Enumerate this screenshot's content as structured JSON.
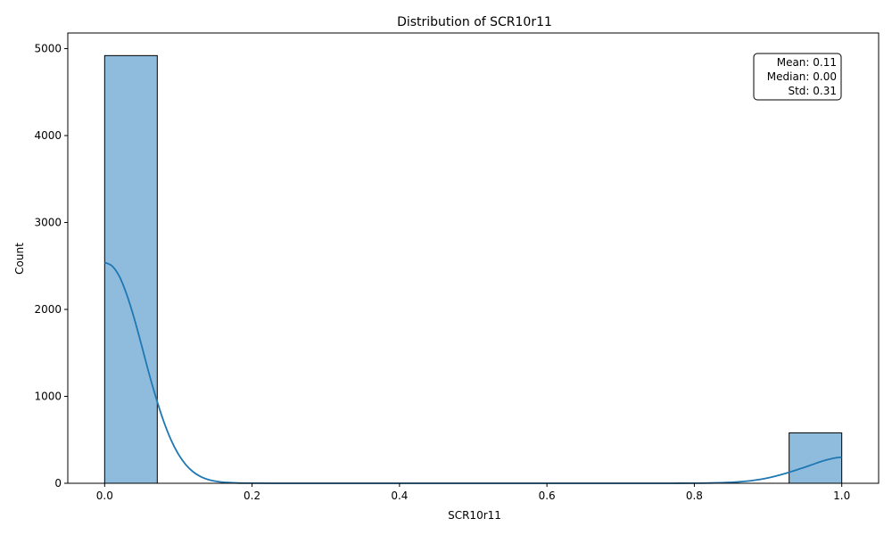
{
  "chart_data": {
    "type": "bar",
    "title": "Distribution of SCR10r11",
    "xlabel": "SCR10r11",
    "ylabel": "Count",
    "xlim": [
      -0.05,
      1.05
    ],
    "ylim": [
      0,
      5180
    ],
    "x_ticks": [
      0.0,
      0.2,
      0.4,
      0.6,
      0.8,
      1.0
    ],
    "x_tick_labels": [
      "0.0",
      "0.2",
      "0.4",
      "0.6",
      "0.8",
      "1.0"
    ],
    "y_ticks": [
      0,
      1000,
      2000,
      3000,
      4000,
      5000
    ],
    "y_tick_labels": [
      "0",
      "1000",
      "2000",
      "3000",
      "4000",
      "5000"
    ],
    "bins": [
      {
        "x0": 0.0,
        "x1": 0.0714,
        "count": 4920
      },
      {
        "x0": 0.9286,
        "x1": 1.0,
        "count": 580
      }
    ],
    "kde": {
      "x": [
        0.0,
        0.01,
        0.02,
        0.03,
        0.04,
        0.05,
        0.06,
        0.07,
        0.08,
        0.09,
        0.1,
        0.11,
        0.12,
        0.13,
        0.14,
        0.15,
        0.16,
        0.18,
        0.2,
        0.25,
        0.3,
        0.4,
        0.5,
        0.6,
        0.7,
        0.75,
        0.8,
        0.82,
        0.84,
        0.86,
        0.88,
        0.9,
        0.92,
        0.93,
        0.94,
        0.95,
        0.96,
        0.97,
        0.98,
        0.99,
        1.0
      ],
      "y": [
        2540,
        2500,
        2380,
        2170,
        1900,
        1590,
        1270,
        975,
        715,
        500,
        335,
        215,
        132,
        78,
        44,
        24,
        13,
        3,
        1,
        0,
        0,
        0,
        0,
        0,
        0,
        0,
        1,
        3,
        7,
        16,
        33,
        62,
        105,
        130,
        158,
        185,
        215,
        245,
        270,
        290,
        300
      ]
    },
    "stats": {
      "mean": "Mean: 0.11",
      "median": "Median: 0.00",
      "std": "Std: 0.31"
    },
    "colors": {
      "bar_fill": "#8fbcdc",
      "bar_edge": "#000000",
      "kde_line": "#1f77b4"
    }
  }
}
